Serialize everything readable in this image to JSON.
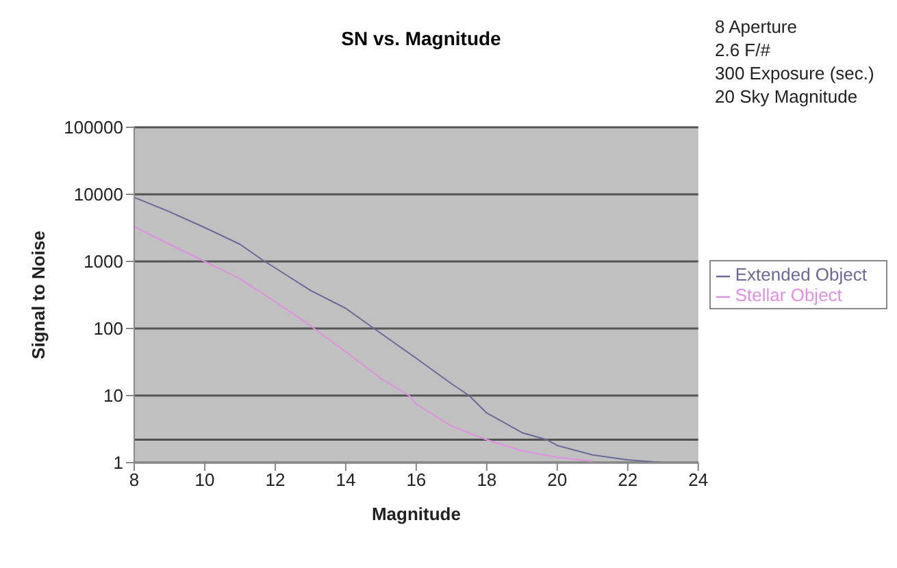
{
  "chart_data": {
    "type": "line",
    "title": "SN vs. Magnitude",
    "xlabel": "Magnitude",
    "ylabel": "Signal to Noise",
    "annotations": [
      "8 Aperture",
      "2.6 F/#",
      "300 Exposure (sec.)",
      "20 Sky Magnitude"
    ],
    "series": [
      {
        "name": "Extended Object",
        "color": "#6a6a98",
        "x": [
          8,
          9,
          10,
          11,
          11.7,
          12,
          13,
          14,
          14.8,
          16,
          17,
          17.5,
          18,
          19,
          19.7,
          20,
          21,
          22,
          23
        ],
        "values": [
          9000,
          5500,
          3200,
          1800,
          1000,
          800,
          370,
          200,
          100,
          36,
          15,
          10,
          5.5,
          2.8,
          2.2,
          1.8,
          1.3,
          1.1,
          1
        ]
      },
      {
        "name": "Stellar Object",
        "color": "#e090e0",
        "x": [
          8,
          9,
          10,
          11,
          12,
          13,
          13.1,
          14,
          15,
          15.8,
          16,
          17,
          18,
          19,
          20,
          21
        ],
        "values": [
          3300,
          1800,
          1000,
          550,
          250,
          110,
          100,
          45,
          18,
          10,
          7.5,
          3.5,
          2.2,
          1.5,
          1.2,
          1.05
        ]
      }
    ],
    "xlim": [
      8,
      24
    ],
    "xticks": [
      8,
      10,
      12,
      14,
      16,
      18,
      20,
      22,
      24
    ],
    "ylim": [
      1,
      100000
    ],
    "yticks": [
      1,
      10,
      100,
      1000,
      10000,
      100000
    ],
    "log": "y",
    "grid": "y",
    "legend": "right",
    "marker": "none",
    "line_style": "solid",
    "ref_lines": [
      {
        "axis": "y",
        "value": 2.2,
        "color": "#505050"
      }
    ]
  }
}
